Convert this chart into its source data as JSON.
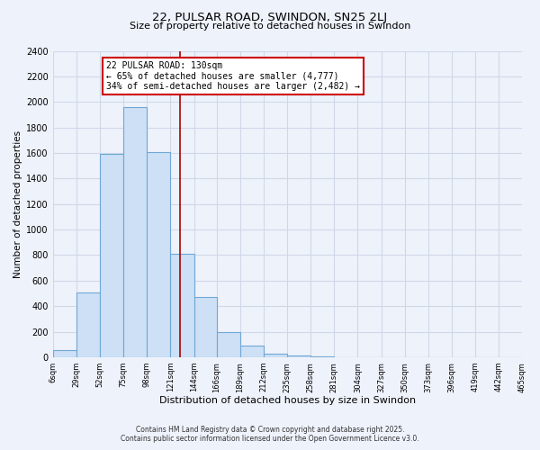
{
  "title_line1": "22, PULSAR ROAD, SWINDON, SN25 2LJ",
  "title_line2": "Size of property relative to detached houses in Swindon",
  "xlabel": "Distribution of detached houses by size in Swindon",
  "ylabel": "Number of detached properties",
  "bar_edges": [
    6,
    29,
    52,
    75,
    98,
    121,
    144,
    166,
    189,
    212,
    235,
    258,
    281,
    304,
    327,
    350,
    373,
    396,
    419,
    442,
    465
  ],
  "bar_heights": [
    55,
    510,
    1590,
    1960,
    1610,
    810,
    475,
    195,
    90,
    30,
    15,
    5,
    2,
    0,
    0,
    0,
    0,
    0,
    0,
    0
  ],
  "bar_color": "#cde0f5",
  "bar_edge_color": "#6fa8d6",
  "property_size": 130,
  "vline_color": "#aa0000",
  "annotation_text": "22 PULSAR ROAD: 130sqm\n← 65% of detached houses are smaller (4,777)\n34% of semi-detached houses are larger (2,482) →",
  "annotation_box_color": "#ffffff",
  "annotation_box_edge": "#cc0000",
  "tick_labels": [
    "6sqm",
    "29sqm",
    "52sqm",
    "75sqm",
    "98sqm",
    "121sqm",
    "144sqm",
    "166sqm",
    "189sqm",
    "212sqm",
    "235sqm",
    "258sqm",
    "281sqm",
    "304sqm",
    "327sqm",
    "350sqm",
    "373sqm",
    "396sqm",
    "419sqm",
    "442sqm",
    "465sqm"
  ],
  "ylim": [
    0,
    2400
  ],
  "yticks": [
    0,
    200,
    400,
    600,
    800,
    1000,
    1200,
    1400,
    1600,
    1800,
    2000,
    2200,
    2400
  ],
  "footer_line1": "Contains HM Land Registry data © Crown copyright and database right 2025.",
  "footer_line2": "Contains public sector information licensed under the Open Government Licence v3.0.",
  "bg_color": "#eef2fb",
  "grid_color": "#d0d8e8"
}
